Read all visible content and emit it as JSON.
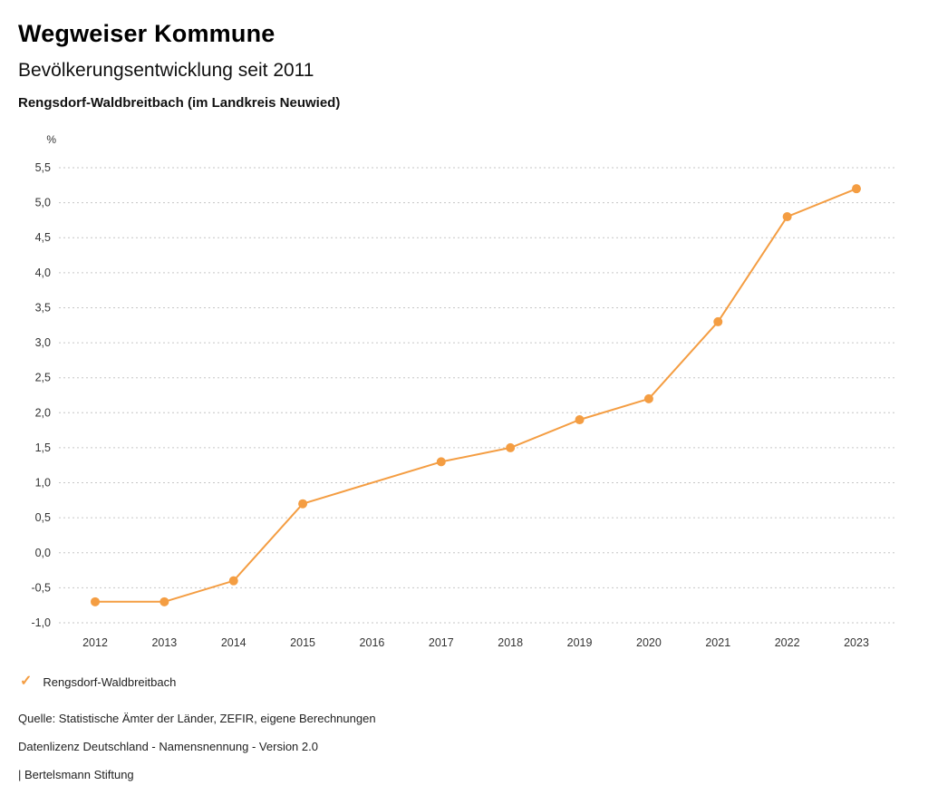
{
  "header": {
    "title": "Wegweiser Kommune",
    "subtitle": "Bevölkerungsentwicklung seit 2011",
    "region": "Rengsdorf-Waldbreitbach (im Landkreis Neuwied)"
  },
  "chart_data": {
    "type": "line",
    "title": "Bevölkerungsentwicklung seit 2011",
    "xlabel": "",
    "ylabel": "%",
    "categories": [
      "2012",
      "2013",
      "2014",
      "2015",
      "2016",
      "2017",
      "2018",
      "2019",
      "2020",
      "2021",
      "2022",
      "2023"
    ],
    "series": [
      {
        "name": "Rengsdorf-Waldbreitbach",
        "color": "#F49D42",
        "values": [
          -0.7,
          -0.7,
          -0.4,
          0.7,
          null,
          1.3,
          1.5,
          1.9,
          2.2,
          3.3,
          4.8,
          5.2
        ]
      }
    ],
    "ylim": [
      -1.0,
      5.5
    ],
    "y_tick_step": 0.5,
    "y_ticks": [
      "5,5",
      "5,0",
      "4,5",
      "4,0",
      "3,5",
      "3,0",
      "2,5",
      "2,0",
      "1,5",
      "1,0",
      "0,5",
      "0,0",
      "-0,5",
      "-1,0"
    ],
    "grid": "horizontal dotted",
    "legend_position": "bottom-left"
  },
  "legend": {
    "marker": "check-icon",
    "label": "Rengsdorf-Waldbreitbach",
    "color": "#F49D42",
    "check_glyph": "✓"
  },
  "footer": {
    "source": "Quelle: Statistische Ämter der Länder, ZEFIR, eigene Berechnungen",
    "license": "Datenlizenz Deutschland - Namensnennung - Version 2.0",
    "attribution": "| Bertelsmann Stiftung"
  },
  "colors": {
    "accent": "#F49D42",
    "grid": "#c6c6c6",
    "tick_text": "#333333"
  }
}
